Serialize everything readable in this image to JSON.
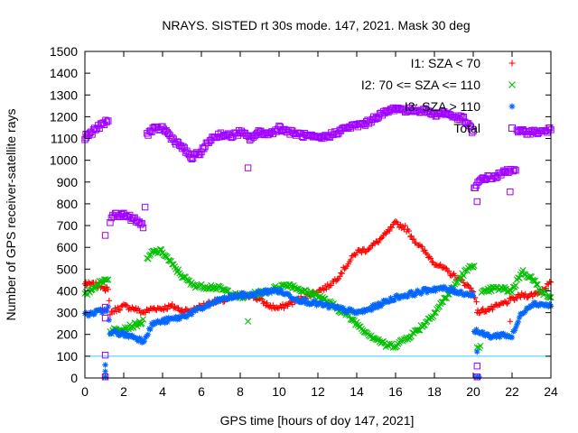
{
  "chart_data": {
    "type": "scatter",
    "title": "NRAYS. SISTED rt 30s mode. 147, 2021. Mask 30 deg",
    "xlabel": "GPS time [hours of doy 147, 2021]",
    "ylabel": "Number of GPS receiver-satellite rays",
    "xlim": [
      0,
      24
    ],
    "ylim": [
      0,
      1500
    ],
    "xticks": [
      0,
      2,
      4,
      6,
      8,
      10,
      12,
      14,
      16,
      18,
      20,
      22,
      24
    ],
    "yticks": [
      0,
      100,
      200,
      300,
      400,
      500,
      600,
      700,
      800,
      900,
      1000,
      1100,
      1200,
      1300,
      1400,
      1500
    ],
    "reference_line": {
      "y": 100,
      "color": "#33ccff"
    },
    "legend_position": "top-right",
    "series": [
      {
        "name": "I1: SZA < 70",
        "marker": "+",
        "color": "#ff0000",
        "x": [
          0,
          0.5,
          1,
          1.2,
          1.3,
          1.5,
          2,
          2.5,
          3,
          3.5,
          4,
          4.5,
          5,
          5.5,
          6,
          6.5,
          7,
          7.5,
          8,
          8.5,
          9,
          9.5,
          10,
          10.5,
          11,
          11.5,
          12,
          12.5,
          13,
          13.5,
          14,
          14.5,
          15,
          15.5,
          16,
          16.5,
          17,
          17.5,
          18,
          18.5,
          19,
          19.5,
          20,
          20.1,
          20.3,
          20.5,
          21,
          21.5,
          22,
          22.5,
          23,
          23.5,
          24
        ],
        "y": [
          430,
          430,
          420,
          400,
          300,
          310,
          330,
          320,
          300,
          320,
          320,
          330,
          310,
          310,
          330,
          350,
          350,
          370,
          380,
          380,
          360,
          330,
          320,
          340,
          360,
          380,
          400,
          420,
          460,
          520,
          580,
          590,
          620,
          660,
          710,
          690,
          630,
          580,
          530,
          500,
          470,
          440,
          400,
          360,
          300,
          310,
          320,
          340,
          360,
          380,
          380,
          400,
          440
        ]
      },
      {
        "name": "I2: 70 <= SZA <= 110",
        "marker": "x",
        "color": "#00c000",
        "x": [
          0,
          0.5,
          1,
          1.2,
          1.3,
          1.5,
          2,
          2.5,
          3,
          3.2,
          3.5,
          4,
          4.5,
          5,
          5.5,
          6,
          6.5,
          7,
          7.5,
          8,
          8.5,
          9,
          9.5,
          10,
          10.5,
          11,
          11.5,
          12,
          12.5,
          13,
          13.5,
          14,
          14.5,
          15,
          15.5,
          16,
          16.5,
          17,
          17.5,
          18,
          18.5,
          19,
          19.5,
          20,
          20.1,
          20.3,
          20.5,
          21,
          21.5,
          22,
          22.5,
          23,
          23.5,
          24
        ],
        "y": [
          380,
          420,
          450,
          460,
          210,
          220,
          230,
          240,
          260,
          540,
          580,
          580,
          520,
          470,
          430,
          420,
          420,
          410,
          390,
          370,
          380,
          390,
          400,
          420,
          430,
          410,
          390,
          380,
          350,
          320,
          290,
          250,
          210,
          180,
          150,
          150,
          180,
          210,
          250,
          300,
          360,
          420,
          480,
          520,
          530,
          140,
          390,
          410,
          410,
          400,
          490,
          460,
          400,
          370
        ]
      },
      {
        "name": "I3: SZA > 110",
        "marker": "*",
        "color": "#0066ff",
        "x": [
          0,
          0.5,
          1,
          1.2,
          1.3,
          1.5,
          2,
          2.5,
          3,
          3.5,
          4,
          4.5,
          5,
          5.5,
          6,
          6.5,
          7,
          7.5,
          8,
          8.5,
          9,
          9.5,
          10,
          10.5,
          11,
          11.5,
          12,
          12.5,
          13,
          13.5,
          14,
          14.5,
          15,
          15.5,
          16,
          16.5,
          17,
          17.5,
          18,
          18.5,
          19,
          19.5,
          20,
          20.1,
          20.3,
          20.5,
          21,
          21.5,
          22,
          22.5,
          23,
          23.5,
          24
        ],
        "y": [
          290,
          300,
          310,
          320,
          200,
          210,
          200,
          190,
          170,
          250,
          260,
          270,
          280,
          300,
          320,
          340,
          360,
          370,
          380,
          380,
          390,
          400,
          400,
          380,
          360,
          350,
          340,
          330,
          320,
          310,
          300,
          310,
          330,
          350,
          370,
          380,
          390,
          400,
          410,
          410,
          400,
          390,
          380,
          220,
          210,
          200,
          190,
          200,
          190,
          300,
          340,
          340,
          330
        ]
      },
      {
        "name": "Total",
        "marker": "square",
        "color": "#a000ff",
        "x": [
          0,
          0.5,
          1,
          1.2,
          1.3,
          1.5,
          2,
          2.5,
          3,
          3.2,
          3.5,
          4,
          4.5,
          5,
          5.5,
          6,
          6.5,
          7,
          7.5,
          8,
          8.5,
          9,
          9.5,
          10,
          10.5,
          11,
          11.5,
          12,
          12.5,
          13,
          13.5,
          14,
          14.5,
          15,
          15.5,
          16,
          16.5,
          17,
          17.5,
          18,
          18.5,
          19,
          19.5,
          20,
          20.1,
          20.3,
          20.5,
          21,
          21.5,
          22,
          22.5,
          23,
          23.5,
          24
        ],
        "y": [
          1100,
          1140,
          1170,
          1180,
          720,
          750,
          750,
          730,
          700,
          1120,
          1140,
          1150,
          1100,
          1060,
          1010,
          1040,
          1100,
          1120,
          1110,
          1130,
          1100,
          1130,
          1120,
          1150,
          1130,
          1120,
          1110,
          1100,
          1110,
          1130,
          1150,
          1160,
          1170,
          1200,
          1220,
          1240,
          1230,
          1230,
          1230,
          1210,
          1220,
          1200,
          1190,
          1130,
          870,
          900,
          920,
          920,
          940,
          960,
          1130,
          1130,
          1130,
          1140
        ]
      }
    ],
    "outliers": {
      "Total": [
        [
          0.05,
          1120
        ],
        [
          1.05,
          655
        ],
        [
          1.05,
          325
        ],
        [
          1.05,
          275
        ],
        [
          1.05,
          105
        ],
        [
          1.05,
          5
        ],
        [
          3.1,
          785
        ],
        [
          8.4,
          965
        ],
        [
          20.2,
          810
        ],
        [
          20.2,
          55
        ],
        [
          20.2,
          5
        ],
        [
          21.9,
          855
        ]
      ],
      "I1: SZA < 70": [
        [
          0.05,
          440
        ],
        [
          1.05,
          400
        ],
        [
          1.05,
          5
        ],
        [
          20.2,
          300
        ],
        [
          20.2,
          5
        ],
        [
          21.9,
          260
        ]
      ],
      "I2: 70 <= SZA <= 110": [
        [
          1.05,
          5
        ],
        [
          8.4,
          260
        ],
        [
          20.2,
          140
        ],
        [
          20.2,
          5
        ]
      ],
      "I3: SZA > 110": [
        [
          1.05,
          5
        ],
        [
          1.05,
          30
        ],
        [
          1.05,
          60
        ],
        [
          20.2,
          5
        ],
        [
          20.2,
          120
        ],
        [
          20.3,
          5
        ]
      ]
    }
  }
}
